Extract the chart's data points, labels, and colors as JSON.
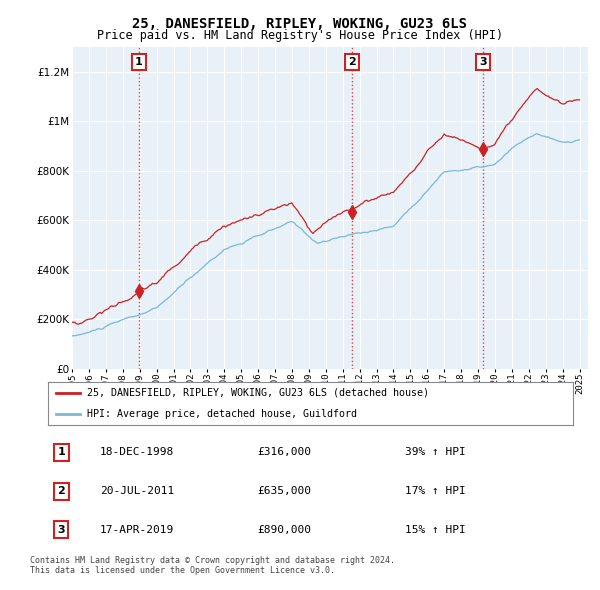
{
  "title": "25, DANESFIELD, RIPLEY, WOKING, GU23 6LS",
  "subtitle": "Price paid vs. HM Land Registry's House Price Index (HPI)",
  "ytick_values": [
    0,
    200000,
    400000,
    600000,
    800000,
    1000000,
    1200000
  ],
  "ylim": [
    0,
    1300000
  ],
  "xlim_start": 1995.0,
  "xlim_end": 2025.5,
  "hpi_color": "#7bb8d4",
  "price_color": "#cc2222",
  "sale_marker_color": "#cc2222",
  "plot_bg_color": "#e8f0f8",
  "grid_color": "#ffffff",
  "transactions": [
    {
      "date": 1998.96,
      "price": 316000,
      "label": "1"
    },
    {
      "date": 2011.55,
      "price": 635000,
      "label": "2"
    },
    {
      "date": 2019.29,
      "price": 890000,
      "label": "3"
    }
  ],
  "table_rows": [
    {
      "num": "1",
      "date": "18-DEC-1998",
      "price": "£316,000",
      "change": "39% ↑ HPI"
    },
    {
      "num": "2",
      "date": "20-JUL-2011",
      "price": "£635,000",
      "change": "17% ↑ HPI"
    },
    {
      "num": "3",
      "date": "17-APR-2019",
      "price": "£890,000",
      "change": "15% ↑ HPI"
    }
  ],
  "legend_labels": [
    "25, DANESFIELD, RIPLEY, WOKING, GU23 6LS (detached house)",
    "HPI: Average price, detached house, Guildford"
  ],
  "footnote": "Contains HM Land Registry data © Crown copyright and database right 2024.\nThis data is licensed under the Open Government Licence v3.0."
}
